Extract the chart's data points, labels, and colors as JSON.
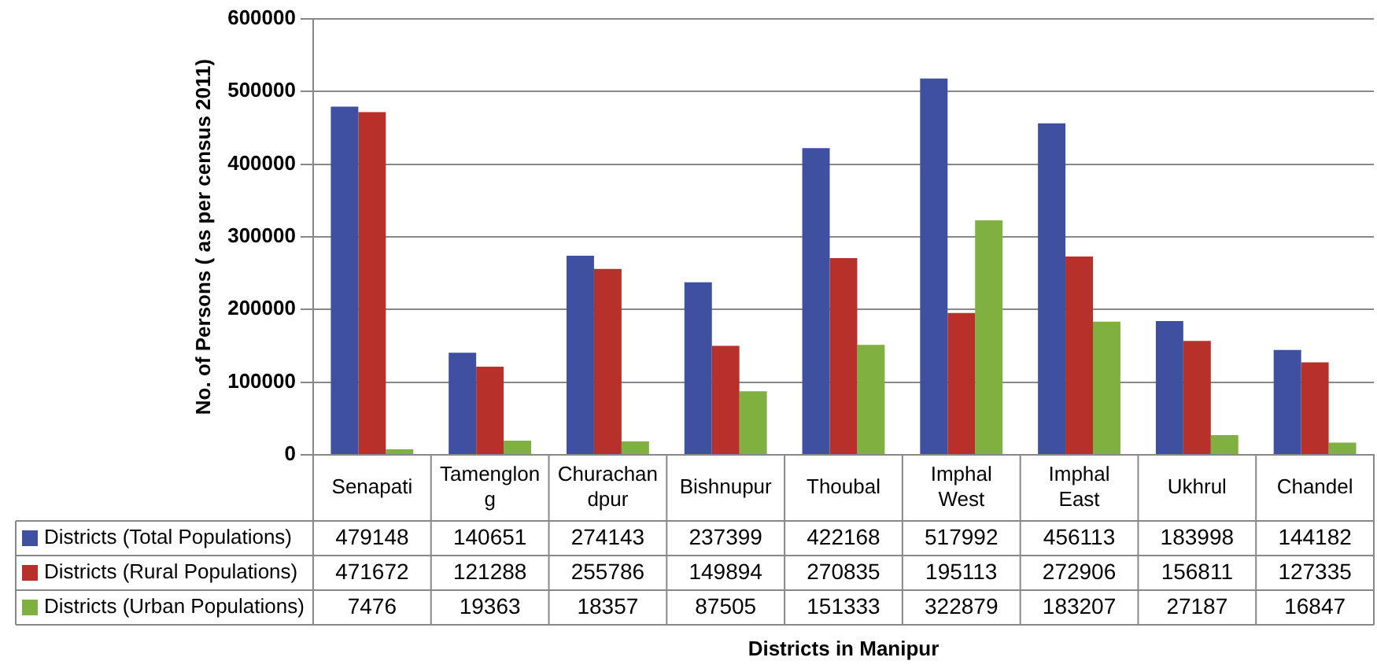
{
  "chart_data": {
    "type": "bar",
    "annotations": [
      "Districts in Manipur"
    ],
    "ylabel": "No. of Persons ( as per census 2011)",
    "categories": [
      "Senapati",
      "Tamenglong",
      "Churachandpur",
      "Bishnupur",
      "Thoubal",
      "Imphal West",
      "Imphal East",
      "Ukhrul",
      "Chandel"
    ],
    "series": [
      {
        "name": "Districts (Total Populations)",
        "color": "#4050a0",
        "values": [
          479148,
          140651,
          274143,
          237399,
          422168,
          517992,
          456113,
          183998,
          144182
        ]
      },
      {
        "name": "Districts (Rural Populations)",
        "color": "#b8302a",
        "values": [
          471672,
          121288,
          255786,
          149894,
          270835,
          195113,
          272906,
          156811,
          127335
        ]
      },
      {
        "name": "Districts (Urban Populations)",
        "color": "#80b040",
        "values": [
          7476,
          19363,
          18357,
          87505,
          151333,
          322879,
          183207,
          27187,
          16847
        ]
      }
    ],
    "ylim": [
      0,
      600000
    ],
    "yticks": [
      0,
      100000,
      200000,
      300000,
      400000,
      500000,
      600000
    ],
    "grid": "y",
    "legend": "bottom",
    "data_labels": true
  }
}
